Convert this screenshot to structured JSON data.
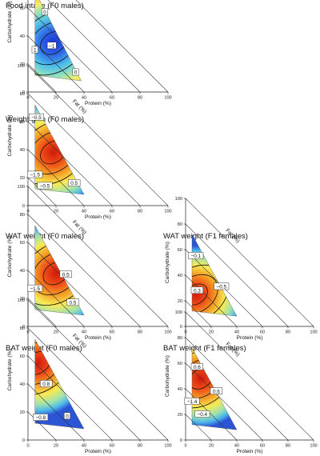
{
  "chart_data": [
    {
      "type": "contour",
      "title": "Food intake (F0 males)",
      "xlabel": "Protein (%)",
      "ylabel": "Carbohydrate (%)",
      "diag_label": "Fat (%)",
      "x_ticks": [
        0,
        20,
        40,
        60,
        80,
        100
      ],
      "y_ticks": [
        0,
        20,
        40,
        60,
        80,
        100
      ],
      "diagonal_ticks": [
        20,
        40,
        60,
        80,
        100
      ],
      "domain_vertices": [
        [
          5,
          72
        ],
        [
          5,
          12
        ],
        [
          38,
          8
        ]
      ],
      "peak": {
        "x": 18,
        "y": 35,
        "type": "low"
      },
      "contour_labels": [
        {
          "text": "1",
          "x": 10,
          "y": 70
        },
        {
          "text": "0",
          "x": 12,
          "y": 57
        },
        {
          "text": "1",
          "x": 5,
          "y": 30
        },
        {
          "text": "−1",
          "x": 17,
          "y": 33
        },
        {
          "text": "0",
          "x": 34,
          "y": 14
        }
      ]
    },
    {
      "type": "contour",
      "title": "Weight gain (F0 males)",
      "xlabel": "Protein (%)",
      "ylabel": "Carbohydrate (%)",
      "diag_label": "Fat (%)",
      "x_ticks": [
        0,
        20,
        40,
        60,
        80,
        100
      ],
      "y_ticks": [
        0,
        20,
        40,
        60,
        80,
        100
      ],
      "diagonal_ticks": [
        20,
        40,
        60,
        80,
        100
      ],
      "domain_vertices": [
        [
          5,
          72
        ],
        [
          5,
          12
        ],
        [
          40,
          8
        ]
      ],
      "peak": {
        "x": 18,
        "y": 38,
        "type": "high"
      },
      "contour_labels": [
        {
          "text": "−0.5",
          "x": 6,
          "y": 63
        },
        {
          "text": "−1.5",
          "x": 5,
          "y": 22
        },
        {
          "text": "−0.5",
          "x": 12,
          "y": 14
        },
        {
          "text": "0.5",
          "x": 33,
          "y": 16
        }
      ]
    },
    {
      "type": "contour",
      "title": "WAT weight (F0 males)",
      "xlabel": "Protein (%)",
      "ylabel": "Carbohydrate (%)",
      "diag_label": "Fat (%)",
      "x_ticks": [
        0,
        20,
        40,
        60,
        80,
        100
      ],
      "y_ticks": [
        0,
        20,
        40,
        60,
        80,
        100
      ],
      "diagonal_ticks": [
        20,
        40,
        60,
        80,
        100
      ],
      "domain_vertices": [
        [
          5,
          72
        ],
        [
          5,
          12
        ],
        [
          40,
          8
        ]
      ],
      "peak": {
        "x": 20,
        "y": 38,
        "type": "high"
      },
      "contour_labels": [
        {
          "text": "0.5",
          "x": 27,
          "y": 37
        },
        {
          "text": "−1.5",
          "x": 5,
          "y": 27
        },
        {
          "text": "0.5",
          "x": 32,
          "y": 17
        }
      ]
    },
    {
      "type": "contour",
      "title": "WAT weight (F1 females)",
      "xlabel": "Protein (%)",
      "ylabel": "Carbohydrate (%)",
      "diag_label": "Fat (%)",
      "x_ticks": [
        0,
        20,
        40,
        60,
        80,
        100
      ],
      "y_ticks": [
        0,
        20,
        40,
        60,
        80,
        100
      ],
      "diagonal_ticks": [
        20,
        40,
        60,
        80,
        100
      ],
      "domain_vertices": [
        [
          5,
          72
        ],
        [
          5,
          12
        ],
        [
          40,
          8
        ]
      ],
      "peak": {
        "x": 8,
        "y": 25,
        "type": "high"
      },
      "contour_labels": [
        {
          "text": "−0.1",
          "x": 8,
          "y": 55
        },
        {
          "text": "0.3",
          "x": 9,
          "y": 28
        },
        {
          "text": "−0.5",
          "x": 28,
          "y": 31
        }
      ]
    },
    {
      "type": "contour",
      "title": "BAT weight (F0 males)",
      "xlabel": "Protein (%)",
      "ylabel": "Carbohydrate (%)",
      "diag_label": "Fat (%)",
      "x_ticks": [
        0,
        20,
        40,
        60,
        80,
        100
      ],
      "y_ticks": [
        0,
        20,
        40,
        60,
        80,
        100
      ],
      "diagonal_ticks": [
        20,
        40,
        60,
        80,
        100
      ],
      "domain_vertices": [
        [
          5,
          72
        ],
        [
          5,
          12
        ],
        [
          40,
          8
        ]
      ],
      "peak": {
        "x": 7,
        "y": 55,
        "type": "high"
      },
      "contour_labels": [
        {
          "text": "0.8",
          "x": 13,
          "y": 40
        },
        {
          "text": "−0.8",
          "x": 9,
          "y": 16
        },
        {
          "text": "0",
          "x": 28,
          "y": 17
        }
      ]
    },
    {
      "type": "contour",
      "title": "BAT weight (F1 females)",
      "xlabel": "Protein (%)",
      "ylabel": "Carbohydrate (%)",
      "diag_label": "Fat (%)",
      "x_ticks": [
        0,
        20,
        40,
        60,
        80,
        100
      ],
      "y_ticks": [
        0,
        20,
        40,
        60,
        80,
        100
      ],
      "diagonal_ticks": [
        20,
        40,
        60,
        80,
        100
      ],
      "domain_vertices": [
        [
          5,
          72
        ],
        [
          5,
          12
        ],
        [
          40,
          8
        ]
      ],
      "peak": {
        "x": 12,
        "y": 48,
        "type": "high"
      },
      "contour_labels": [
        {
          "text": "0.6",
          "x": 9,
          "y": 57
        },
        {
          "text": "0.6",
          "x": 24,
          "y": 38
        },
        {
          "text": "−1.4",
          "x": 5,
          "y": 30
        },
        {
          "text": "−0.4",
          "x": 13,
          "y": 20
        }
      ]
    }
  ]
}
